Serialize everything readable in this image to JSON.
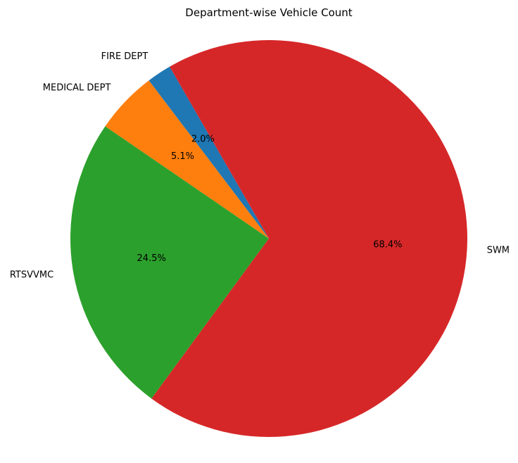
{
  "chart_data": {
    "type": "pie",
    "title": "Department-wise Vehicle Count",
    "labels": [
      "FIRE DEPT",
      "MEDICAL DEPT",
      "RTSVVMC",
      "SWM"
    ],
    "values": [
      2.0,
      5.1,
      24.5,
      68.4
    ],
    "percent_labels": [
      "2.0%",
      "5.1%",
      "24.5%",
      "68.4%"
    ],
    "colors": [
      "#1f77b4",
      "#ff7f0e",
      "#2ca02c",
      "#d62728"
    ],
    "start_angle_deg": 120,
    "direction": "counterclockwise",
    "legend": "none"
  }
}
